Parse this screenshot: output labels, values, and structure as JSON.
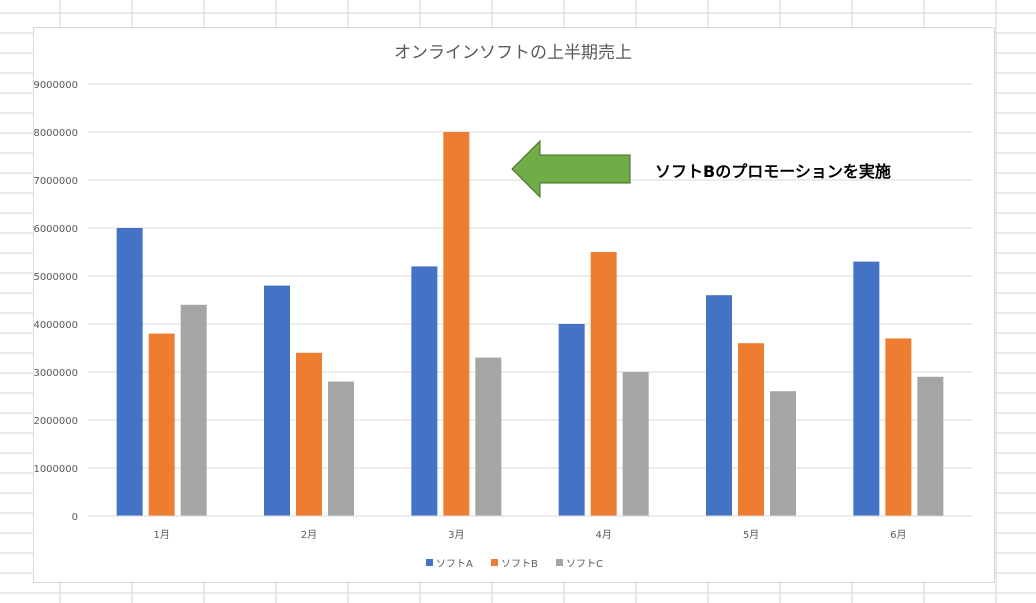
{
  "spreadsheet": {
    "gridline_color": "#d4d4d4"
  },
  "chart_data": {
    "type": "bar",
    "title": "オンラインソフトの上半期売上",
    "categories": [
      "1月",
      "2月",
      "3月",
      "4月",
      "5月",
      "6月"
    ],
    "series": [
      {
        "name": "ソフトA",
        "color": "#4472c4",
        "values": [
          6000000,
          4800000,
          5200000,
          4000000,
          4600000,
          5300000
        ]
      },
      {
        "name": "ソフトB",
        "color": "#ed7d31",
        "values": [
          3800000,
          3400000,
          8000000,
          5500000,
          3600000,
          3700000
        ]
      },
      {
        "name": "ソフトC",
        "color": "#a5a5a5",
        "values": [
          4400000,
          2800000,
          3300000,
          3000000,
          2600000,
          2900000
        ]
      }
    ],
    "xlabel": "",
    "ylabel": "",
    "ylim": [
      0,
      9000000
    ],
    "yticks": [
      "0",
      "1000000",
      "2000000",
      "3000000",
      "4000000",
      "5000000",
      "6000000",
      "7000000",
      "8000000",
      "9000000"
    ],
    "grid": true,
    "legend_position": "bottom",
    "annotation": {
      "text": "ソフトBのプロモーションを実施",
      "arrow_color": "#70ad47",
      "arrow_direction": "left",
      "target_category": "3月",
      "target_series": "ソフトB"
    }
  }
}
